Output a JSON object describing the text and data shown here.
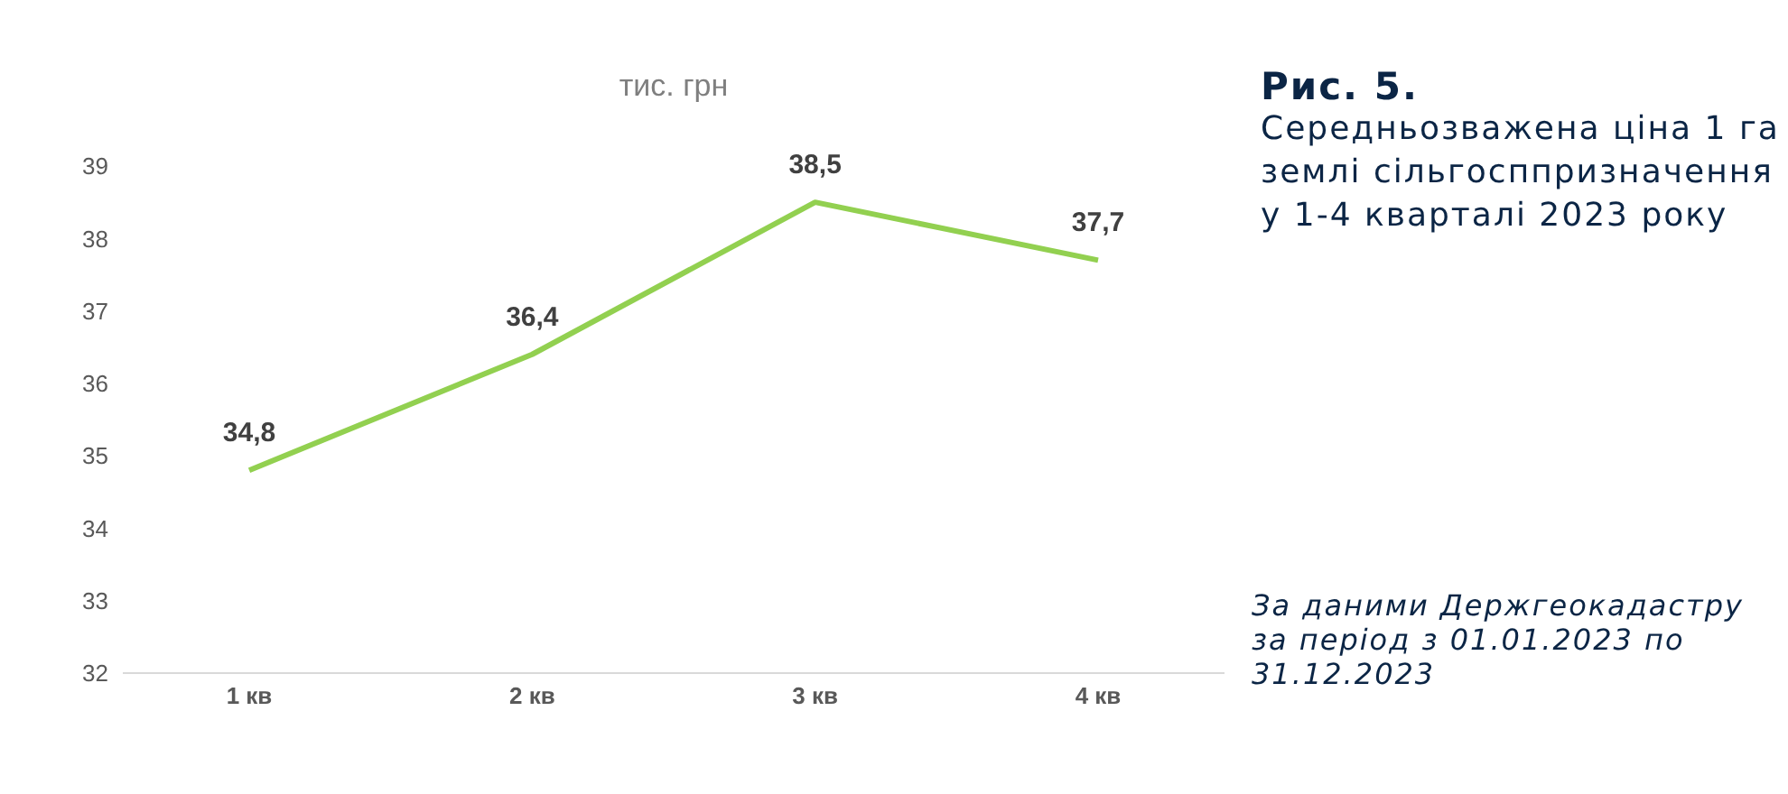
{
  "chart_data": {
    "type": "line",
    "title": "Рис. 5.",
    "subtitle": "Середньозважена ціна 1 га землі сільгосппризначення у 1-4 кварталі 2023 року",
    "ylabel": "тис. грн",
    "annotations": [
      "За даними Держгеокадастру за період з 01.01.2023 по 31.12.2023"
    ],
    "categories": [
      "1 кв",
      "2 кв",
      "3 кв",
      "4 кв"
    ],
    "series": [
      {
        "color": "#92d050",
        "values": [
          34.8,
          36.4,
          38.5,
          37.7
        ],
        "value_labels": [
          "34,8",
          "36,4",
          "38,5",
          "37,7"
        ]
      }
    ],
    "ylim": [
      32,
      39
    ],
    "yticks": [
      32,
      33,
      34,
      35,
      36,
      37,
      38,
      39
    ],
    "grid": false,
    "legend": false,
    "marker": "none",
    "line_style": "solid"
  }
}
